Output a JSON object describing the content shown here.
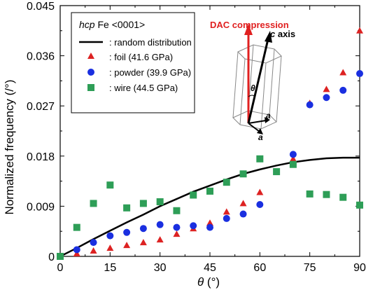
{
  "chart_data": {
    "type": "scatter",
    "xlabel": "θ (°)",
    "xlabel_symbol": "θ",
    "xlabel_unit": " (°)",
    "ylabel": "Normalized frequency (/°)",
    "xlim": [
      0,
      90
    ],
    "ylim": [
      0,
      0.045
    ],
    "xticks": [
      0,
      15,
      30,
      45,
      60,
      75,
      90
    ],
    "yticks": [
      {
        "value": 0,
        "label": "0"
      },
      {
        "value": 0.009,
        "label": "0.009"
      },
      {
        "value": 0.018,
        "label": "0.018"
      },
      {
        "value": 0.027,
        "label": "0.027"
      },
      {
        "value": 0.036,
        "label": "0.036"
      },
      {
        "value": 0.045,
        "label": "0.045"
      }
    ],
    "grid": false,
    "legend": {
      "position": "top-left",
      "title_italic": "hcp",
      "title_rest": " Fe <0001>"
    },
    "series": [
      {
        "name": ": random distribution",
        "kind": "line",
        "color": "#000000",
        "x": [
          0,
          5,
          10,
          15,
          20,
          25,
          30,
          35,
          40,
          45,
          50,
          55,
          60,
          65,
          70,
          75,
          80,
          85,
          90
        ],
        "y": [
          0,
          0.0015,
          0.0031,
          0.0046,
          0.0061,
          0.0075,
          0.009,
          0.0103,
          0.0116,
          0.0127,
          0.0138,
          0.0148,
          0.0156,
          0.0163,
          0.0169,
          0.0173,
          0.0176,
          0.0177,
          0.0177
        ]
      },
      {
        "name": ": foil (41.6 GPa)",
        "kind": "scatter",
        "marker": "triangle",
        "color": "#dd2222",
        "x": [
          0,
          5,
          10,
          15,
          20,
          25,
          30,
          35,
          40,
          45,
          50,
          55,
          60,
          70,
          75,
          80,
          85,
          90
        ],
        "y": [
          0,
          0.0005,
          0.001,
          0.0015,
          0.002,
          0.0025,
          0.003,
          0.004,
          0.005,
          0.006,
          0.008,
          0.0095,
          0.0115,
          0.0175,
          0.0275,
          0.03,
          0.033,
          0.0405
        ]
      },
      {
        "name": ": powder (39.9 GPa)",
        "kind": "scatter",
        "marker": "circle",
        "color": "#1a2fe0",
        "x": [
          0,
          5,
          10,
          15,
          20,
          25,
          30,
          35,
          40,
          45,
          50,
          55,
          60,
          70,
          75,
          80,
          85,
          90
        ],
        "y": [
          0,
          0.0012,
          0.0025,
          0.0037,
          0.0043,
          0.005,
          0.0057,
          0.0052,
          0.0055,
          0.0052,
          0.0068,
          0.0076,
          0.0093,
          0.0183,
          0.0272,
          0.0285,
          0.0298,
          0.0328
        ]
      },
      {
        "name": ": wire (44.5 GPa)",
        "kind": "scatter",
        "marker": "square",
        "color": "#2e9e57",
        "x": [
          0,
          5,
          10,
          15,
          20,
          25,
          30,
          35,
          40,
          45,
          50,
          55,
          60,
          65,
          70,
          75,
          80,
          85,
          90
        ],
        "y": [
          0,
          0.0052,
          0.0095,
          0.0128,
          0.0087,
          0.0095,
          0.0098,
          0.0082,
          0.011,
          0.0117,
          0.0133,
          0.0148,
          0.0175,
          0.0152,
          0.0165,
          0.0112,
          0.0111,
          0.0106,
          0.0092
        ]
      }
    ],
    "inset": {
      "label_compression": "DAC compression",
      "label_caxis": "c axis",
      "label_caxis_letter": "c",
      "label_caxis_rest": " axis",
      "label_theta": "θ",
      "label_a1": "a",
      "label_a2": "a",
      "compression_color": "#e02020"
    }
  }
}
